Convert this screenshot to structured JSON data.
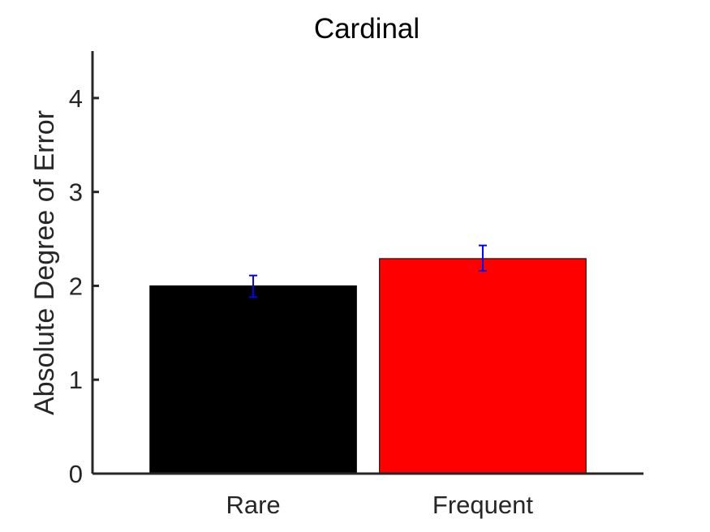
{
  "chart_data": {
    "type": "bar",
    "title": "Cardinal",
    "xlabel": "",
    "ylabel": "Absolute Degree of Error",
    "categories": [
      "Rare",
      "Frequent"
    ],
    "values": [
      2.0,
      2.29
    ],
    "error_bars": [
      {
        "low": 1.88,
        "high": 2.11
      },
      {
        "low": 2.16,
        "high": 2.43
      }
    ],
    "ylim": [
      0,
      4.5
    ],
    "yticks": [
      0,
      1,
      2,
      3,
      4
    ],
    "xlim": [
      0.3,
      2.7
    ],
    "bar_colors": [
      "#000000",
      "#ff0000"
    ],
    "error_bar_color": "#0000ff",
    "axis_color": "#262626",
    "grid": false,
    "legend": "none"
  }
}
